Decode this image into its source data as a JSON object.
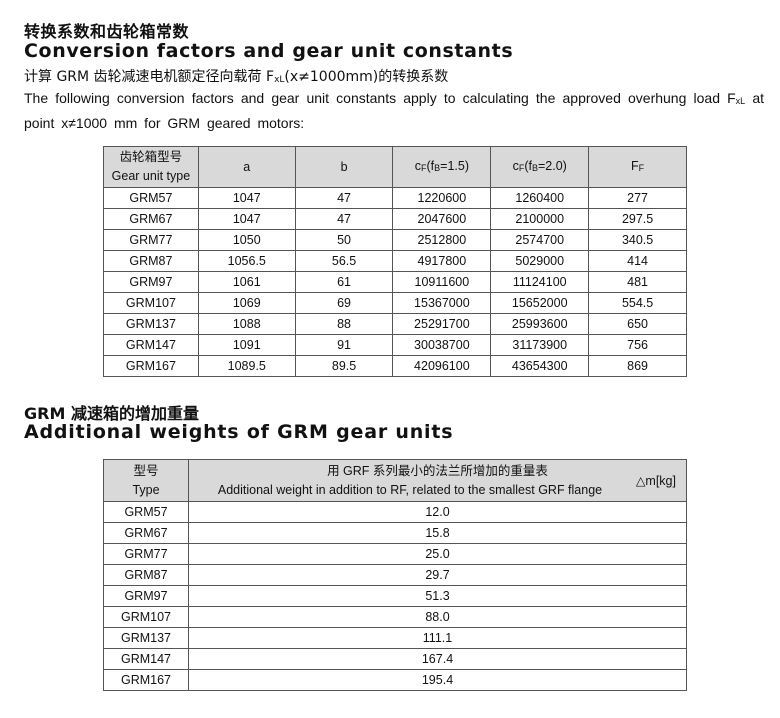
{
  "section1": {
    "title_cn": "转换系数和齿轮箱常数",
    "title_en": "Conversion factors and gear unit constants",
    "subtitle_cn_pre": "计算 GRM 齿轮减速电机额定径向载荷 F",
    "subtitle_cn_sub": "xL",
    "subtitle_cn_post": "(x≠1000mm)的转换系数",
    "para_pre": "The following conversion factors and gear unit constants apply to calculating the approved overhung load F",
    "para_sub": "xL",
    "para_post": " at point x≠1000 mm for GRM geared motors:",
    "table": {
      "headers": {
        "type_cn": "齿轮箱型号",
        "type_en": "Gear unit type",
        "a": "a",
        "b": "b",
        "c15_pre": "c",
        "c15_sub": "F",
        "c15_mid": "(f",
        "c15_sub2": "B",
        "c15_post": "=1.5)",
        "c20_pre": "c",
        "c20_sub": "F",
        "c20_mid": "(f",
        "c20_sub2": "B",
        "c20_post": "=2.0)",
        "ff_pre": "F",
        "ff_sub": "F"
      },
      "rows": [
        [
          "GRM57",
          "1047",
          "47",
          "1220600",
          "1260400",
          "277"
        ],
        [
          "GRM67",
          "1047",
          "47",
          "2047600",
          "2100000",
          "297.5"
        ],
        [
          "GRM77",
          "1050",
          "50",
          "2512800",
          "2574700",
          "340.5"
        ],
        [
          "GRM87",
          "1056.5",
          "56.5",
          "4917800",
          "5029000",
          "414"
        ],
        [
          "GRM97",
          "1061",
          "61",
          "10911600",
          "11124100",
          "481"
        ],
        [
          "GRM107",
          "1069",
          "69",
          "15367000",
          "15652000",
          "554.5"
        ],
        [
          "GRM137",
          "1088",
          "88",
          "25291700",
          "25993600",
          "650"
        ],
        [
          "GRM147",
          "1091",
          "91",
          "30038700",
          "31173900",
          "756"
        ],
        [
          "GRM167",
          "1089.5",
          "89.5",
          "42096100",
          "43654300",
          "869"
        ]
      ]
    }
  },
  "section2": {
    "title_cn": "GRM 减速箱的增加重量",
    "title_en": "Additional weights of GRM gear units",
    "table": {
      "headers": {
        "type_cn": "型号",
        "type_en": "Type",
        "desc_cn": "用 GRF 系列最小的法兰所增加的重量表",
        "desc_en": "Additional weight in addition to RF, related to the smallest GRF flange",
        "unit": "△m[kg]"
      },
      "rows": [
        [
          "GRM57",
          "12.0"
        ],
        [
          "GRM67",
          "15.8"
        ],
        [
          "GRM77",
          "25.0"
        ],
        [
          "GRM87",
          "29.7"
        ],
        [
          "GRM97",
          "51.3"
        ],
        [
          "GRM107",
          "88.0"
        ],
        [
          "GRM137",
          "111.1"
        ],
        [
          "GRM147",
          "167.4"
        ],
        [
          "GRM167",
          "195.4"
        ]
      ]
    }
  },
  "colors": {
    "header_bg": "#d9d9d9",
    "border": "#555555"
  }
}
